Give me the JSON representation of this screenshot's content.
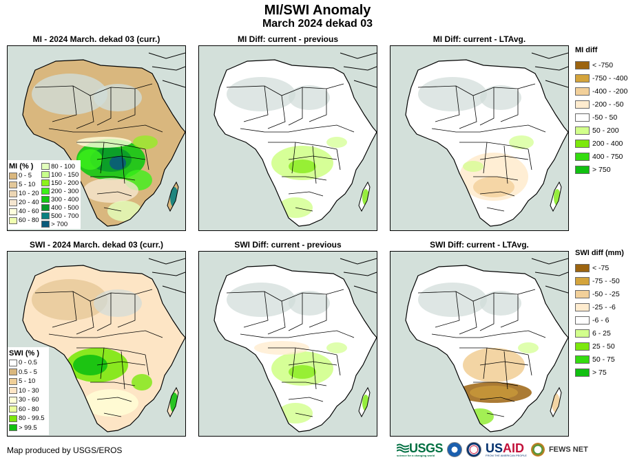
{
  "header": {
    "title": "MI/SWI Anomaly",
    "subtitle": "March 2024 dekad 03"
  },
  "panels": [
    {
      "id": "mi-curr",
      "title": "MI - 2024 March. dekad 03 (curr.)",
      "variable": "MI",
      "type": "current"
    },
    {
      "id": "mi-prev",
      "title": "MI Diff: current - previous",
      "variable": "MI",
      "type": "diff-previous"
    },
    {
      "id": "mi-ltavg",
      "title": "MI Diff: current - LTAvg.",
      "variable": "MI",
      "type": "diff-ltavg"
    },
    {
      "id": "swi-curr",
      "title": "SWI - 2024 March. dekad 03 (curr.)",
      "variable": "SWI",
      "type": "current"
    },
    {
      "id": "swi-prev",
      "title": "SWI Diff: current - previous",
      "variable": "SWI",
      "type": "diff-previous"
    },
    {
      "id": "swi-ltavg",
      "title": "SWI Diff: current - LTAvg.",
      "variable": "SWI",
      "type": "diff-ltavg"
    }
  ],
  "legends": {
    "mi_pct": {
      "title": "MI (% )",
      "items": [
        {
          "label": "0 - 5",
          "color": "#d9b77e"
        },
        {
          "label": "5 - 10",
          "color": "#e3c89a"
        },
        {
          "label": "10 - 20",
          "color": "#ecd6b4"
        },
        {
          "label": "20 - 40",
          "color": "#f5e6d0"
        },
        {
          "label": "40 - 60",
          "color": "#ffffdd"
        },
        {
          "label": "60 - 80",
          "color": "#f0ffb0"
        },
        {
          "label": "80 - 100",
          "color": "#e2ffbc"
        },
        {
          "label": "100 - 150",
          "color": "#c8ff8c"
        },
        {
          "label": "150 - 200",
          "color": "#8cf21c"
        },
        {
          "label": "200 - 300",
          "color": "#3cf01a"
        },
        {
          "label": "300 - 400",
          "color": "#12c812"
        },
        {
          "label": "400 - 500",
          "color": "#0a9a2a"
        },
        {
          "label": "500 - 700",
          "color": "#0a8080"
        },
        {
          "label": "> 700",
          "color": "#0a5a7a"
        }
      ]
    },
    "swi_pct": {
      "title": "SWI (% )",
      "items": [
        {
          "label": "0 - 0.5",
          "color": "#ffffff"
        },
        {
          "label": "0.5 - 5",
          "color": "#d9b77e"
        },
        {
          "label": "5 - 10",
          "color": "#f0cf98"
        },
        {
          "label": "10 - 30",
          "color": "#fde5c5"
        },
        {
          "label": "30 - 60",
          "color": "#ffffd6"
        },
        {
          "label": "60 - 80",
          "color": "#eaff9c"
        },
        {
          "label": "80 - 99.5",
          "color": "#7ce80c"
        },
        {
          "label": "> 99.5",
          "color": "#11c011"
        }
      ]
    },
    "mi_diff": {
      "title": "MI diff",
      "items": [
        {
          "label": "< -750",
          "color": "#9c6410"
        },
        {
          "label": "-750 - -400",
          "color": "#d4a43c"
        },
        {
          "label": "-400 - -200",
          "color": "#f2d09a"
        },
        {
          "label": "-200 - -50",
          "color": "#ffeccf"
        },
        {
          "label": "-50 - 50",
          "color": "#ffffff"
        },
        {
          "label": "50 - 200",
          "color": "#d2ff8c"
        },
        {
          "label": "200 - 400",
          "color": "#7ce80c"
        },
        {
          "label": "400 - 750",
          "color": "#34dc10"
        },
        {
          "label": "> 750",
          "color": "#11c011"
        }
      ]
    },
    "swi_diff": {
      "title": "SWI diff (mm)",
      "items": [
        {
          "label": "< -75",
          "color": "#9c6410"
        },
        {
          "label": "-75 - -50",
          "color": "#d4a43c"
        },
        {
          "label": "-50 - -25",
          "color": "#f2d09a"
        },
        {
          "label": "-25 - -6",
          "color": "#ffeccf"
        },
        {
          "label": "-6 - 6",
          "color": "#ffffff"
        },
        {
          "label": "6 - 25",
          "color": "#d2ff8c"
        },
        {
          "label": "25 - 50",
          "color": "#7ce80c"
        },
        {
          "label": "50 - 75",
          "color": "#34dc10"
        },
        {
          "label": "> 75",
          "color": "#11c011"
        }
      ]
    }
  },
  "footer": {
    "credit": "Map produced by USGS/EROS",
    "logos": {
      "usgs": "USGS",
      "usgs_tagline": "science for a changing world",
      "noaa": "NOAA",
      "usaid_us": "US",
      "usaid_aid": "AID",
      "usaid_tagline": "FROM THE AMERICAN PEOPLE",
      "fews": "FEWS NET"
    }
  },
  "colors": {
    "ocean": "#d3e0da",
    "unmasked_desert": "#d0dcd8",
    "border": "#000000"
  }
}
